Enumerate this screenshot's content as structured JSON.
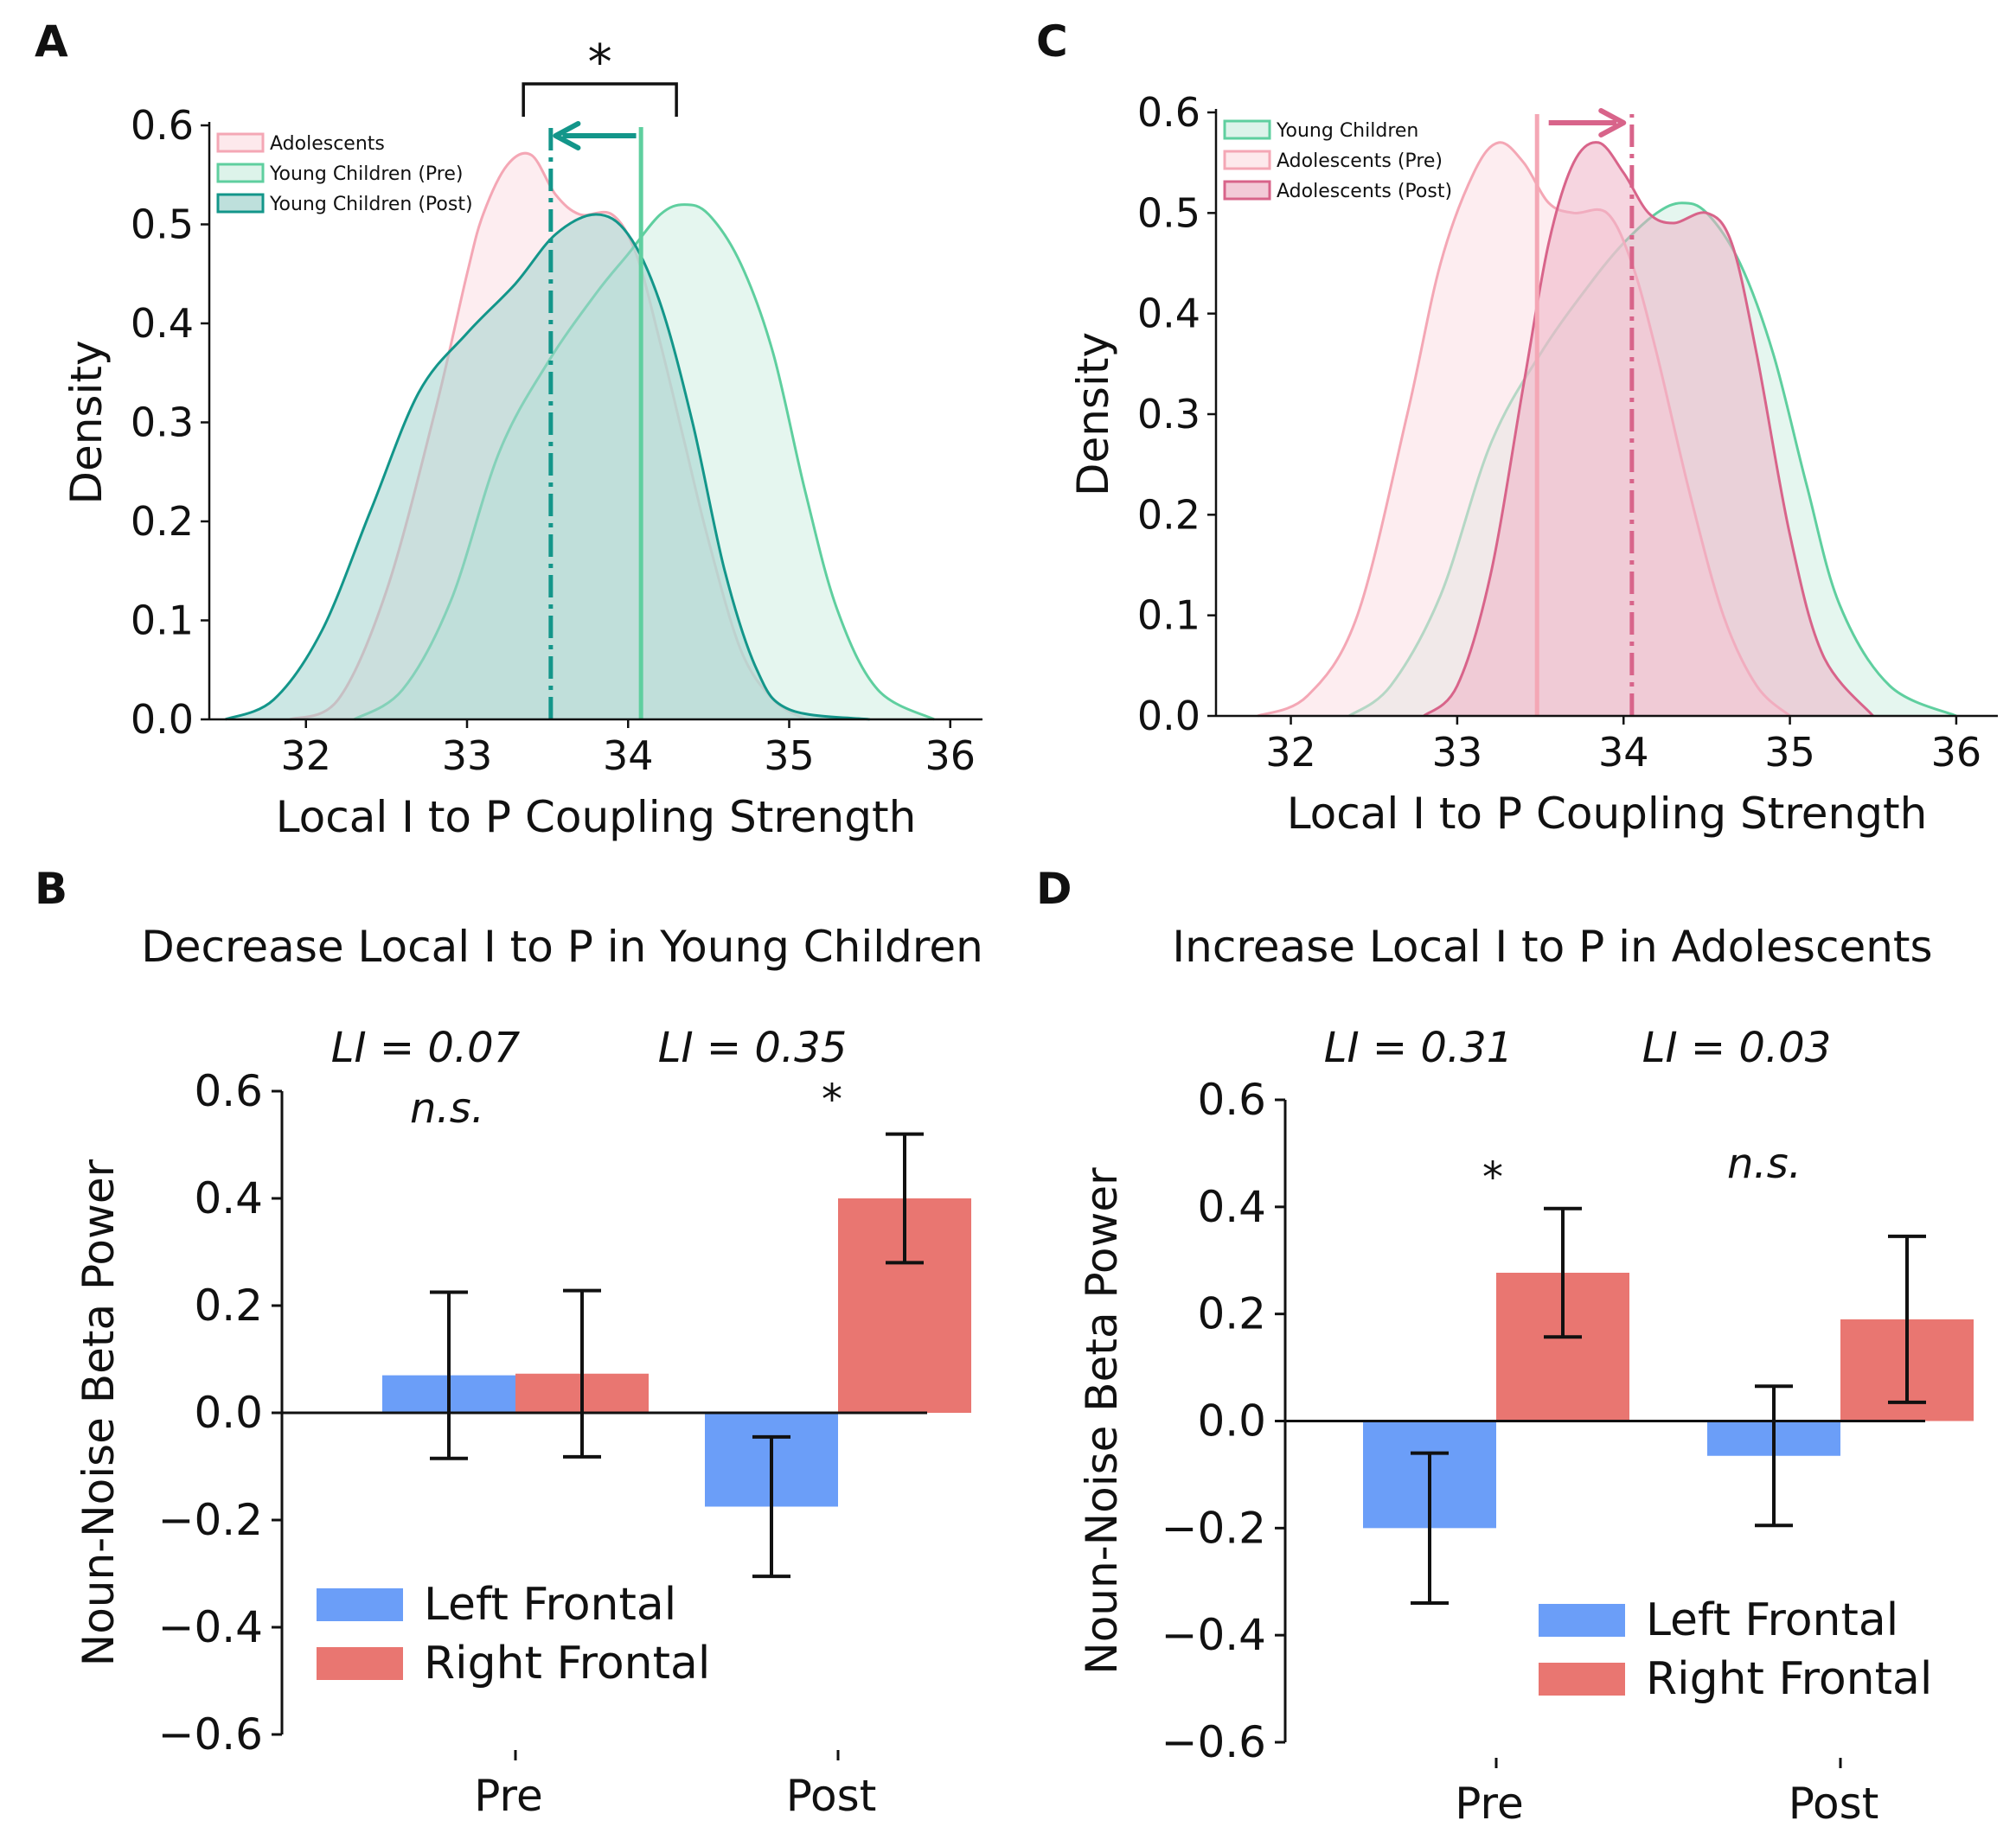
{
  "panels": {
    "A": {
      "letter": "A",
      "significance": "*"
    },
    "B": {
      "letter": "B"
    },
    "C": {
      "letter": "C"
    },
    "D": {
      "letter": "D"
    }
  },
  "colors": {
    "adolescents": "#f4a7b5",
    "adolescents_fill": "#fcdfe4",
    "young_pre": "#5fcf9f",
    "young_pre_fill": "#cfeee1",
    "young_post": "#13968a",
    "young_post_fill": "#a3d3cd",
    "adol_post": "#d8648a",
    "adol_post_fill": "#eeb3c6",
    "left_frontal": "#6b9ef8",
    "right_frontal": "#e97671"
  },
  "chart_data": [
    {
      "panel": "A",
      "type": "area",
      "xlabel": "Local I to P Coupling Strength",
      "ylabel": "Density",
      "xlim": [
        31.4,
        36.2
      ],
      "ylim": [
        0,
        0.6
      ],
      "xticks": [
        "32",
        "33",
        "34",
        "35",
        "36"
      ],
      "yticks": [
        "0.0",
        "0.1",
        "0.2",
        "0.3",
        "0.4",
        "0.5",
        "0.6"
      ],
      "legend": [
        "Adolescents",
        "Young Children (Pre)",
        "Young Children (Post)"
      ],
      "legend_position": "top-left",
      "series": [
        {
          "name": "Adolescents",
          "color_key": "adolescents",
          "x": [
            31.9,
            32.2,
            32.5,
            32.8,
            33.0,
            33.1,
            33.25,
            33.4,
            33.55,
            33.7,
            33.9,
            34.05,
            34.2,
            34.35,
            34.5,
            34.7,
            34.9,
            35.1
          ],
          "y": [
            0.0,
            0.02,
            0.13,
            0.31,
            0.45,
            0.51,
            0.56,
            0.57,
            0.53,
            0.51,
            0.51,
            0.47,
            0.38,
            0.28,
            0.18,
            0.07,
            0.02,
            0.0
          ]
        },
        {
          "name": "Young Children (Pre)",
          "color_key": "young_pre",
          "x": [
            32.3,
            32.6,
            32.9,
            33.2,
            33.5,
            33.8,
            34.0,
            34.2,
            34.35,
            34.5,
            34.7,
            34.9,
            35.1,
            35.3,
            35.55,
            35.9
          ],
          "y": [
            0.0,
            0.03,
            0.12,
            0.27,
            0.36,
            0.43,
            0.47,
            0.51,
            0.52,
            0.51,
            0.46,
            0.37,
            0.23,
            0.11,
            0.03,
            0.0
          ]
        },
        {
          "name": "Young Children (Post)",
          "color_key": "young_post",
          "x": [
            31.5,
            31.8,
            32.1,
            32.4,
            32.7,
            33.0,
            33.3,
            33.55,
            33.8,
            34.0,
            34.2,
            34.4,
            34.6,
            34.8,
            35.0,
            35.5
          ],
          "y": [
            0.0,
            0.02,
            0.09,
            0.21,
            0.33,
            0.39,
            0.44,
            0.49,
            0.51,
            0.49,
            0.42,
            0.3,
            0.15,
            0.05,
            0.01,
            0.0
          ]
        }
      ],
      "vlines": [
        {
          "x": 34.08,
          "color_key": "young_pre",
          "style": "solid"
        },
        {
          "x": 33.52,
          "color_key": "young_post",
          "style": "dashdot"
        }
      ],
      "arrow": {
        "from": 34.05,
        "to": 33.55,
        "color_key": "young_post"
      },
      "bracket": {
        "x1": 33.35,
        "x2": 34.3
      }
    },
    {
      "panel": "C",
      "type": "area",
      "xlabel": "Local I to P Coupling Strength",
      "ylabel": "Density",
      "xlim": [
        31.55,
        36.25
      ],
      "ylim": [
        0,
        0.6
      ],
      "xticks": [
        "32",
        "33",
        "34",
        "35",
        "36"
      ],
      "yticks": [
        "0.0",
        "0.1",
        "0.2",
        "0.3",
        "0.4",
        "0.5",
        "0.6"
      ],
      "legend": [
        "Young Children",
        "Adolescents (Pre)",
        "Adolescents (Post)"
      ],
      "legend_position": "top-left",
      "series": [
        {
          "name": "Young Children",
          "color_key": "young_pre",
          "x": [
            32.35,
            32.6,
            32.9,
            33.2,
            33.5,
            33.8,
            34.0,
            34.2,
            34.35,
            34.5,
            34.7,
            34.9,
            35.1,
            35.3,
            35.6,
            36.0
          ],
          "y": [
            0.0,
            0.03,
            0.12,
            0.27,
            0.36,
            0.43,
            0.47,
            0.5,
            0.51,
            0.5,
            0.45,
            0.36,
            0.23,
            0.11,
            0.03,
            0.0
          ]
        },
        {
          "name": "Adolescents (Pre)",
          "color_key": "adolescents",
          "x": [
            31.8,
            32.1,
            32.4,
            32.7,
            32.9,
            33.1,
            33.25,
            33.4,
            33.55,
            33.7,
            33.9,
            34.05,
            34.2,
            34.4,
            34.6,
            34.8,
            35.0
          ],
          "y": [
            0.0,
            0.02,
            0.1,
            0.3,
            0.45,
            0.54,
            0.57,
            0.55,
            0.51,
            0.5,
            0.5,
            0.45,
            0.36,
            0.22,
            0.1,
            0.03,
            0.0
          ]
        },
        {
          "name": "Adolescents (Post)",
          "color_key": "adol_post",
          "x": [
            32.8,
            33.0,
            33.2,
            33.4,
            33.55,
            33.7,
            33.85,
            34.0,
            34.15,
            34.3,
            34.5,
            34.65,
            34.8,
            35.0,
            35.2,
            35.5
          ],
          "y": [
            0.0,
            0.03,
            0.14,
            0.33,
            0.47,
            0.55,
            0.57,
            0.54,
            0.5,
            0.49,
            0.5,
            0.47,
            0.36,
            0.18,
            0.06,
            0.0
          ]
        }
      ],
      "vlines": [
        {
          "x": 33.48,
          "color_key": "adolescents",
          "style": "solid"
        },
        {
          "x": 34.05,
          "color_key": "adol_post",
          "style": "dashdot"
        }
      ],
      "arrow": {
        "from": 33.55,
        "to": 34.0,
        "color_key": "adol_post"
      }
    },
    {
      "panel": "B",
      "type": "bar",
      "title": "Decrease Local I to P in Young Children",
      "ylabel": "Noun-Noise Beta Power",
      "categories": [
        "Pre",
        "Post"
      ],
      "ylim": [
        -0.6,
        0.6
      ],
      "yticks": [
        "0.6",
        "0.4",
        "0.2",
        "0.0",
        "−0.2",
        "−0.4",
        "−0.6"
      ],
      "series": [
        {
          "name": "Left Frontal",
          "color_key": "left_frontal",
          "values": [
            0.07,
            -0.175
          ],
          "err": [
            0.155,
            0.13
          ]
        },
        {
          "name": "Right Frontal",
          "color_key": "right_frontal",
          "values": [
            0.073,
            0.4
          ],
          "err": [
            0.155,
            0.12
          ]
        }
      ],
      "li_labels": [
        "LI = 0.07",
        "LI = 0.35"
      ],
      "sig_labels": [
        "n.s.",
        "*"
      ],
      "legend_position": "lower-left"
    },
    {
      "panel": "D",
      "type": "bar",
      "title": "Increase Local I to P in Adolescents",
      "ylabel": "Noun-Noise Beta Power",
      "categories": [
        "Pre",
        "Post"
      ],
      "ylim": [
        -0.6,
        0.6
      ],
      "yticks": [
        "0.6",
        "0.4",
        "0.2",
        "0.0",
        "−0.2",
        "−0.4",
        "−0.6"
      ],
      "series": [
        {
          "name": "Left Frontal",
          "color_key": "left_frontal",
          "values": [
            -0.2,
            -0.065
          ],
          "err": [
            0.14,
            0.13
          ]
        },
        {
          "name": "Right Frontal",
          "color_key": "right_frontal",
          "values": [
            0.277,
            0.19
          ],
          "err": [
            0.12,
            0.155
          ]
        }
      ],
      "li_labels": [
        "LI = 0.31",
        "LI = 0.03"
      ],
      "sig_labels": [
        "*",
        "n.s."
      ],
      "legend_position": "lower-right"
    }
  ]
}
